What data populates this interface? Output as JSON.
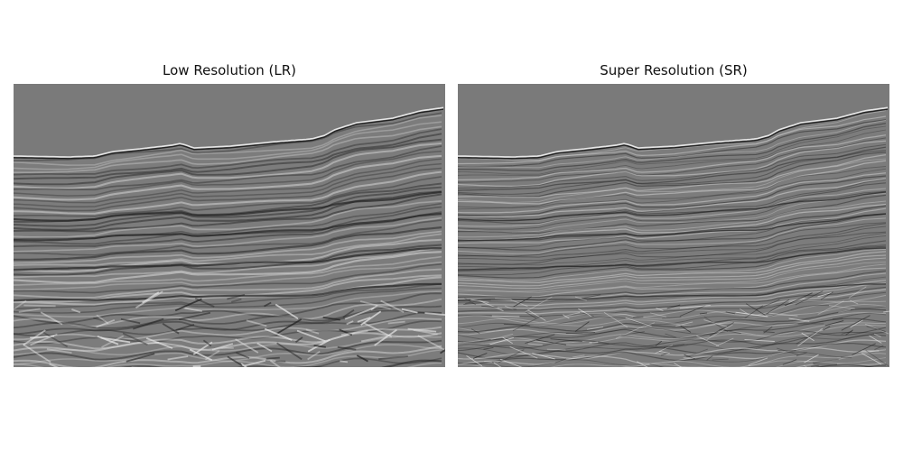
{
  "figure": {
    "panels": [
      {
        "title": "Low Resolution (LR)"
      },
      {
        "title": "Super Resolution (SR)"
      }
    ]
  },
  "colors": {
    "background": "#ffffff",
    "water_column": "#7a7a7a",
    "seismic_mid_gray": "#7c7c7c",
    "reflector_dark": "#222222",
    "reflector_light": "#e6e6e6",
    "title_text": "#111111"
  }
}
